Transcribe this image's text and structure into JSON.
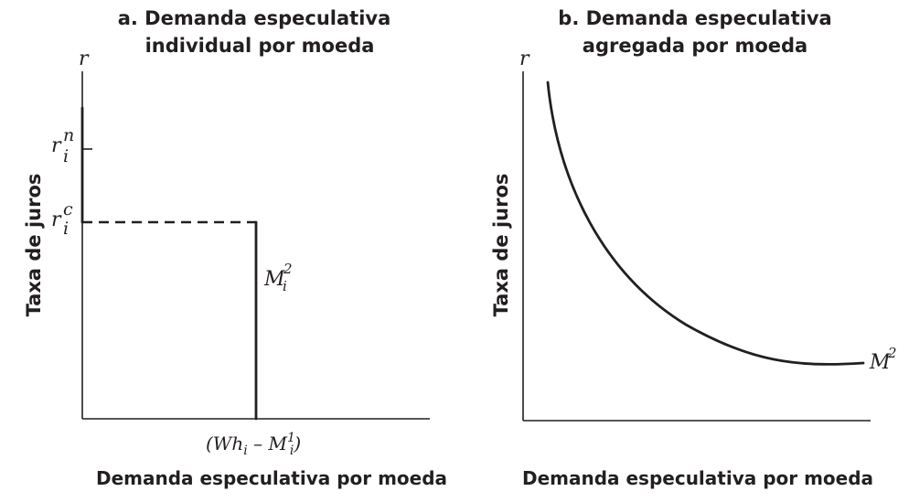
{
  "panel_a": {
    "title_line1": "a. Demanda especulativa",
    "title_line2": "individual por moeda",
    "axis_r": "r",
    "ylabel": "Taxa de juros",
    "xlabel": "Demanda especulativa por moeda",
    "rn_base": "r",
    "rn_sup": "n",
    "rn_sub": "i",
    "rc_base": "r",
    "rc_sup": "c",
    "rc_sub": "i",
    "curve_base": "M",
    "curve_sup": "2",
    "curve_sub": "i",
    "xtick_open": "(Wh",
    "xtick_sub1": "i",
    "xtick_mid": " – M",
    "xtick_sup": "1",
    "xtick_sub2": "i",
    "xtick_close": ")"
  },
  "panel_b": {
    "title_line1": "b. Demanda especulativa",
    "title_line2": "agregada por moeda",
    "axis_r": "r",
    "ylabel": "Taxa de juros",
    "xlabel": "Demanda especulativa por moeda",
    "curve_base": "M",
    "curve_sup": "2"
  },
  "colors": {
    "ink": "#231f20",
    "background": "#ffffff"
  }
}
